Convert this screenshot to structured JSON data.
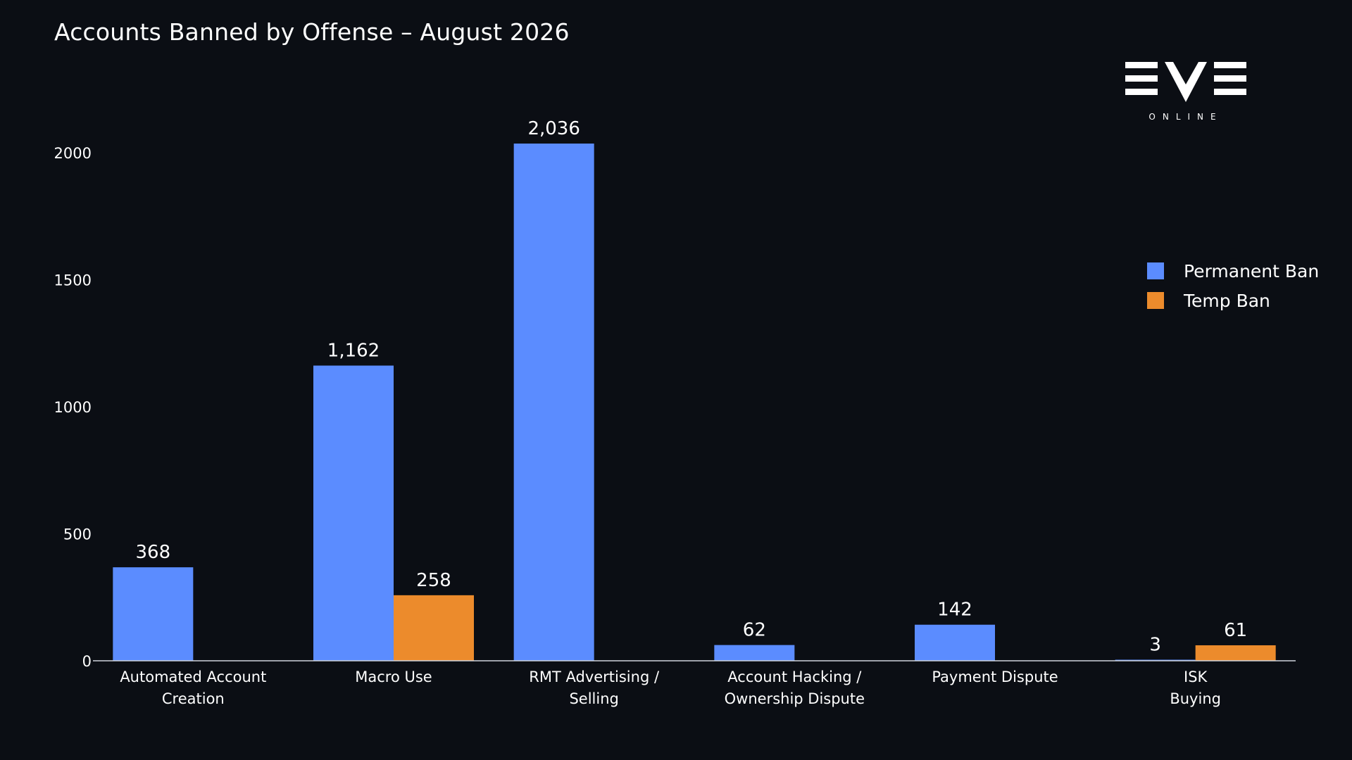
{
  "chart_data": {
    "type": "bar",
    "title": "Accounts Banned by Offense – August 2026",
    "categories": [
      [
        "Automated Account",
        "Creation"
      ],
      [
        "Macro Use"
      ],
      [
        "RMT Advertising /",
        "Selling"
      ],
      [
        "Account Hacking /",
        "Ownership Dispute"
      ],
      [
        "Payment Dispute"
      ],
      [
        "ISK",
        "Buying"
      ]
    ],
    "series": [
      {
        "name": "Permanent Ban",
        "color": "#5b8cff",
        "values": [
          368,
          1162,
          2036,
          62,
          142,
          3
        ],
        "labels": [
          "368",
          "1,162",
          "2,036",
          "62",
          "142",
          "3"
        ]
      },
      {
        "name": "Temp Ban",
        "color": "#ec8b2c",
        "values": [
          0,
          258,
          0,
          0,
          0,
          61
        ],
        "labels": [
          "",
          "258",
          "",
          "",
          "",
          "61"
        ]
      }
    ],
    "yticks": [
      0,
      500,
      1000,
      1500,
      2000
    ],
    "ylim": [
      0,
      2036
    ],
    "grid": false,
    "legend_position": "right",
    "xlabel": "",
    "ylabel": ""
  },
  "logo": {
    "wordmark": "EVE",
    "subtext": "ONLINE",
    "color": "#ffffff"
  }
}
